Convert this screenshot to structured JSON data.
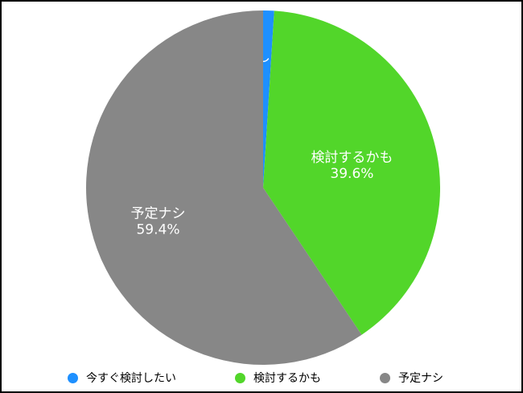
{
  "chart_data": {
    "type": "pie",
    "start_angle_deg": 0,
    "direction": "clockwise",
    "legend_position": "bottom",
    "slices": [
      {
        "label": "今すぐ検討したい",
        "value": 1.0,
        "value_label": "1.0%",
        "color": "#1e90ff"
      },
      {
        "label": "検討するかも",
        "value": 39.6,
        "value_label": "39.6%",
        "color": "#52d62a"
      },
      {
        "label": "予定ナシ",
        "value": 59.4,
        "value_label": "59.4%",
        "color": "#878787"
      }
    ]
  }
}
